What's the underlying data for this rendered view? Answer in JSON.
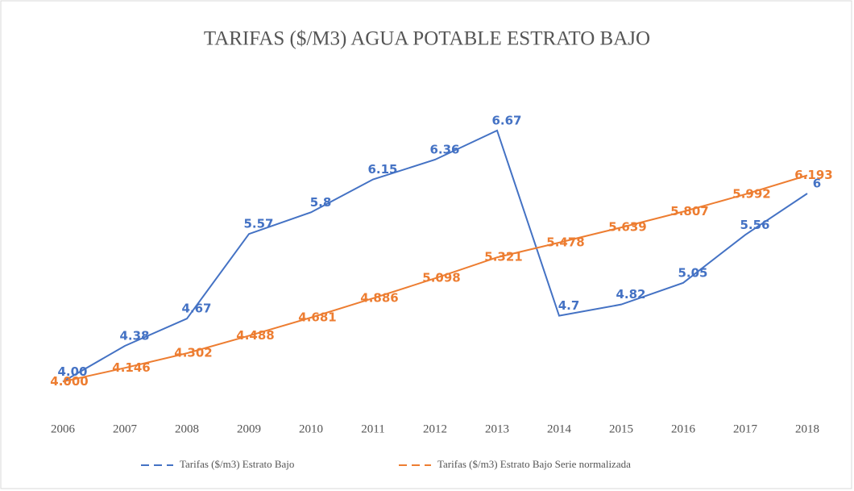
{
  "chart_data": {
    "type": "line",
    "title": "TARIFAS ($/M3) AGUA POTABLE ESTRATO BAJO",
    "categories": [
      "2006",
      "2007",
      "2008",
      "2009",
      "2010",
      "2011",
      "2012",
      "2013",
      "2014",
      "2015",
      "2016",
      "2017",
      "2018"
    ],
    "series": [
      {
        "name": "Tarifas ($/m3) Estrato Bajo",
        "color": "#4472c4",
        "values": [
          4.0,
          4.38,
          4.67,
          5.57,
          5.8,
          6.15,
          6.36,
          6.67,
          4.7,
          4.82,
          5.05,
          5.56,
          6
        ],
        "value_labels": [
          "4.00",
          "4.38",
          "4.67",
          "5.57",
          "5.8",
          "6.15",
          "6.36",
          "6.67",
          "4.7",
          "4.82",
          "5.05",
          "5.56",
          "6"
        ]
      },
      {
        "name": "Tarifas ($/m3) Estrato Bajo Serie normalizada",
        "color": "#ed7d31",
        "values": [
          4.0,
          4.146,
          4.302,
          4.488,
          4.681,
          4.886,
          5.098,
          5.321,
          5.478,
          5.639,
          5.807,
          5.992,
          6.193
        ],
        "value_labels": [
          "4.000",
          "4.146",
          "4.302",
          "4.488",
          "4.681",
          "4.886",
          "5.098",
          "5.321",
          "5.478",
          "5.639",
          "5.807",
          "5.992",
          "6.193"
        ]
      }
    ],
    "ylim": [
      3.6,
      7.2
    ],
    "legend": "bottom"
  }
}
